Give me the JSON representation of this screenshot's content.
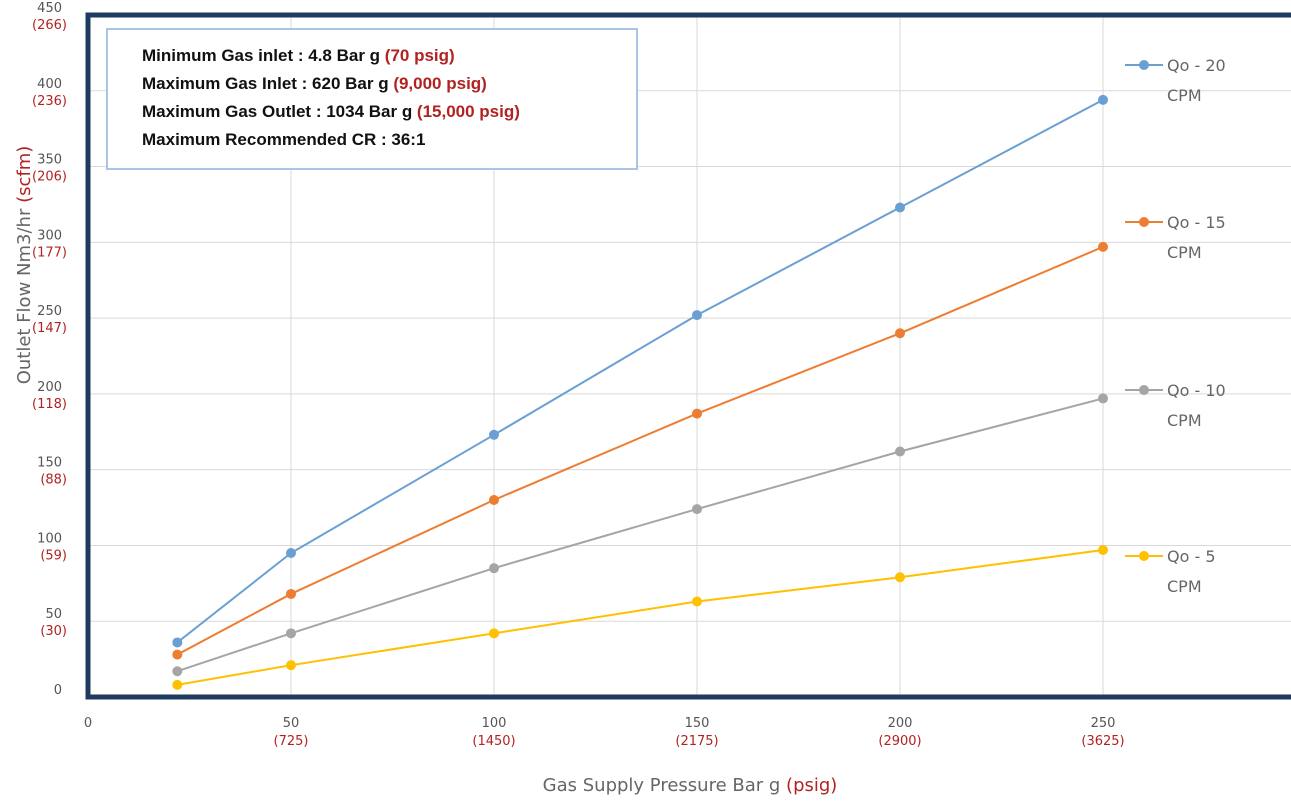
{
  "colors": {
    "frame": "#1f3a5f",
    "grid": "#d9d9d9",
    "secondary_unit": "#b22222",
    "box_border": "#a9c4e4"
  },
  "spec_box": {
    "lines": [
      {
        "text": "Minimum Gas inlet : 4.8 Bar g ",
        "alt": "(70 psig)"
      },
      {
        "text": "Maximum Gas Inlet  : 620 Bar g ",
        "alt": "(9,000 psig)"
      },
      {
        "text": "Maximum Gas Outlet : 1034 Bar g ",
        "alt": "(15,000 psig)"
      },
      {
        "text": "Maximum Recommended CR : 36:1",
        "alt": ""
      }
    ]
  },
  "chart_data": {
    "type": "line",
    "xlabel": "Gas Supply Pressure Bar g",
    "xlabel_alt": "(psig)",
    "ylabel": "Outlet  Flow Nm3/hr",
    "ylabel_alt": "(scfm)",
    "xlim": [
      0,
      300
    ],
    "ylim": [
      0,
      450
    ],
    "x_ticks": [
      {
        "value": 0,
        "label": "0",
        "alt": ""
      },
      {
        "value": 50,
        "label": "50",
        "alt": "(725)"
      },
      {
        "value": 100,
        "label": "100",
        "alt": "(1450)"
      },
      {
        "value": 150,
        "label": "150",
        "alt": "(2175)"
      },
      {
        "value": 200,
        "label": "200",
        "alt": "(2900)"
      },
      {
        "value": 250,
        "label": "250",
        "alt": "(3625)"
      }
    ],
    "y_ticks": [
      {
        "value": 0,
        "label": "0",
        "alt": ""
      },
      {
        "value": 50,
        "label": "50",
        "alt": "(30)"
      },
      {
        "value": 100,
        "label": "100",
        "alt": "(59)"
      },
      {
        "value": 150,
        "label": "150",
        "alt": "(88)"
      },
      {
        "value": 200,
        "label": "200",
        "alt": "(118)"
      },
      {
        "value": 250,
        "label": "250",
        "alt": "(147)"
      },
      {
        "value": 300,
        "label": "300",
        "alt": "(177)"
      },
      {
        "value": 350,
        "label": "350",
        "alt": "(206)"
      },
      {
        "value": 400,
        "label": "400",
        "alt": "(236)"
      },
      {
        "value": 450,
        "label": "450",
        "alt": "(266)"
      }
    ],
    "grid": true,
    "legend_position": "right",
    "x": [
      22,
      50,
      100,
      150,
      200,
      250
    ],
    "series": [
      {
        "name": [
          "Qo - 20",
          "CPM"
        ],
        "color": "#6a9fd4",
        "values": [
          36,
          95,
          173,
          252,
          323,
          394
        ]
      },
      {
        "name": [
          "Qo - 15",
          "CPM"
        ],
        "color": "#ed7d31",
        "values": [
          28,
          68,
          130,
          187,
          240,
          297
        ]
      },
      {
        "name": [
          "Qo  - 10",
          "CPM"
        ],
        "color": "#a5a5a5",
        "values": [
          17,
          42,
          85,
          124,
          162,
          197
        ]
      },
      {
        "name": [
          "Qo - 5",
          "CPM"
        ],
        "color": "#ffc000",
        "values": [
          8,
          21,
          42,
          63,
          79,
          97
        ]
      }
    ]
  }
}
